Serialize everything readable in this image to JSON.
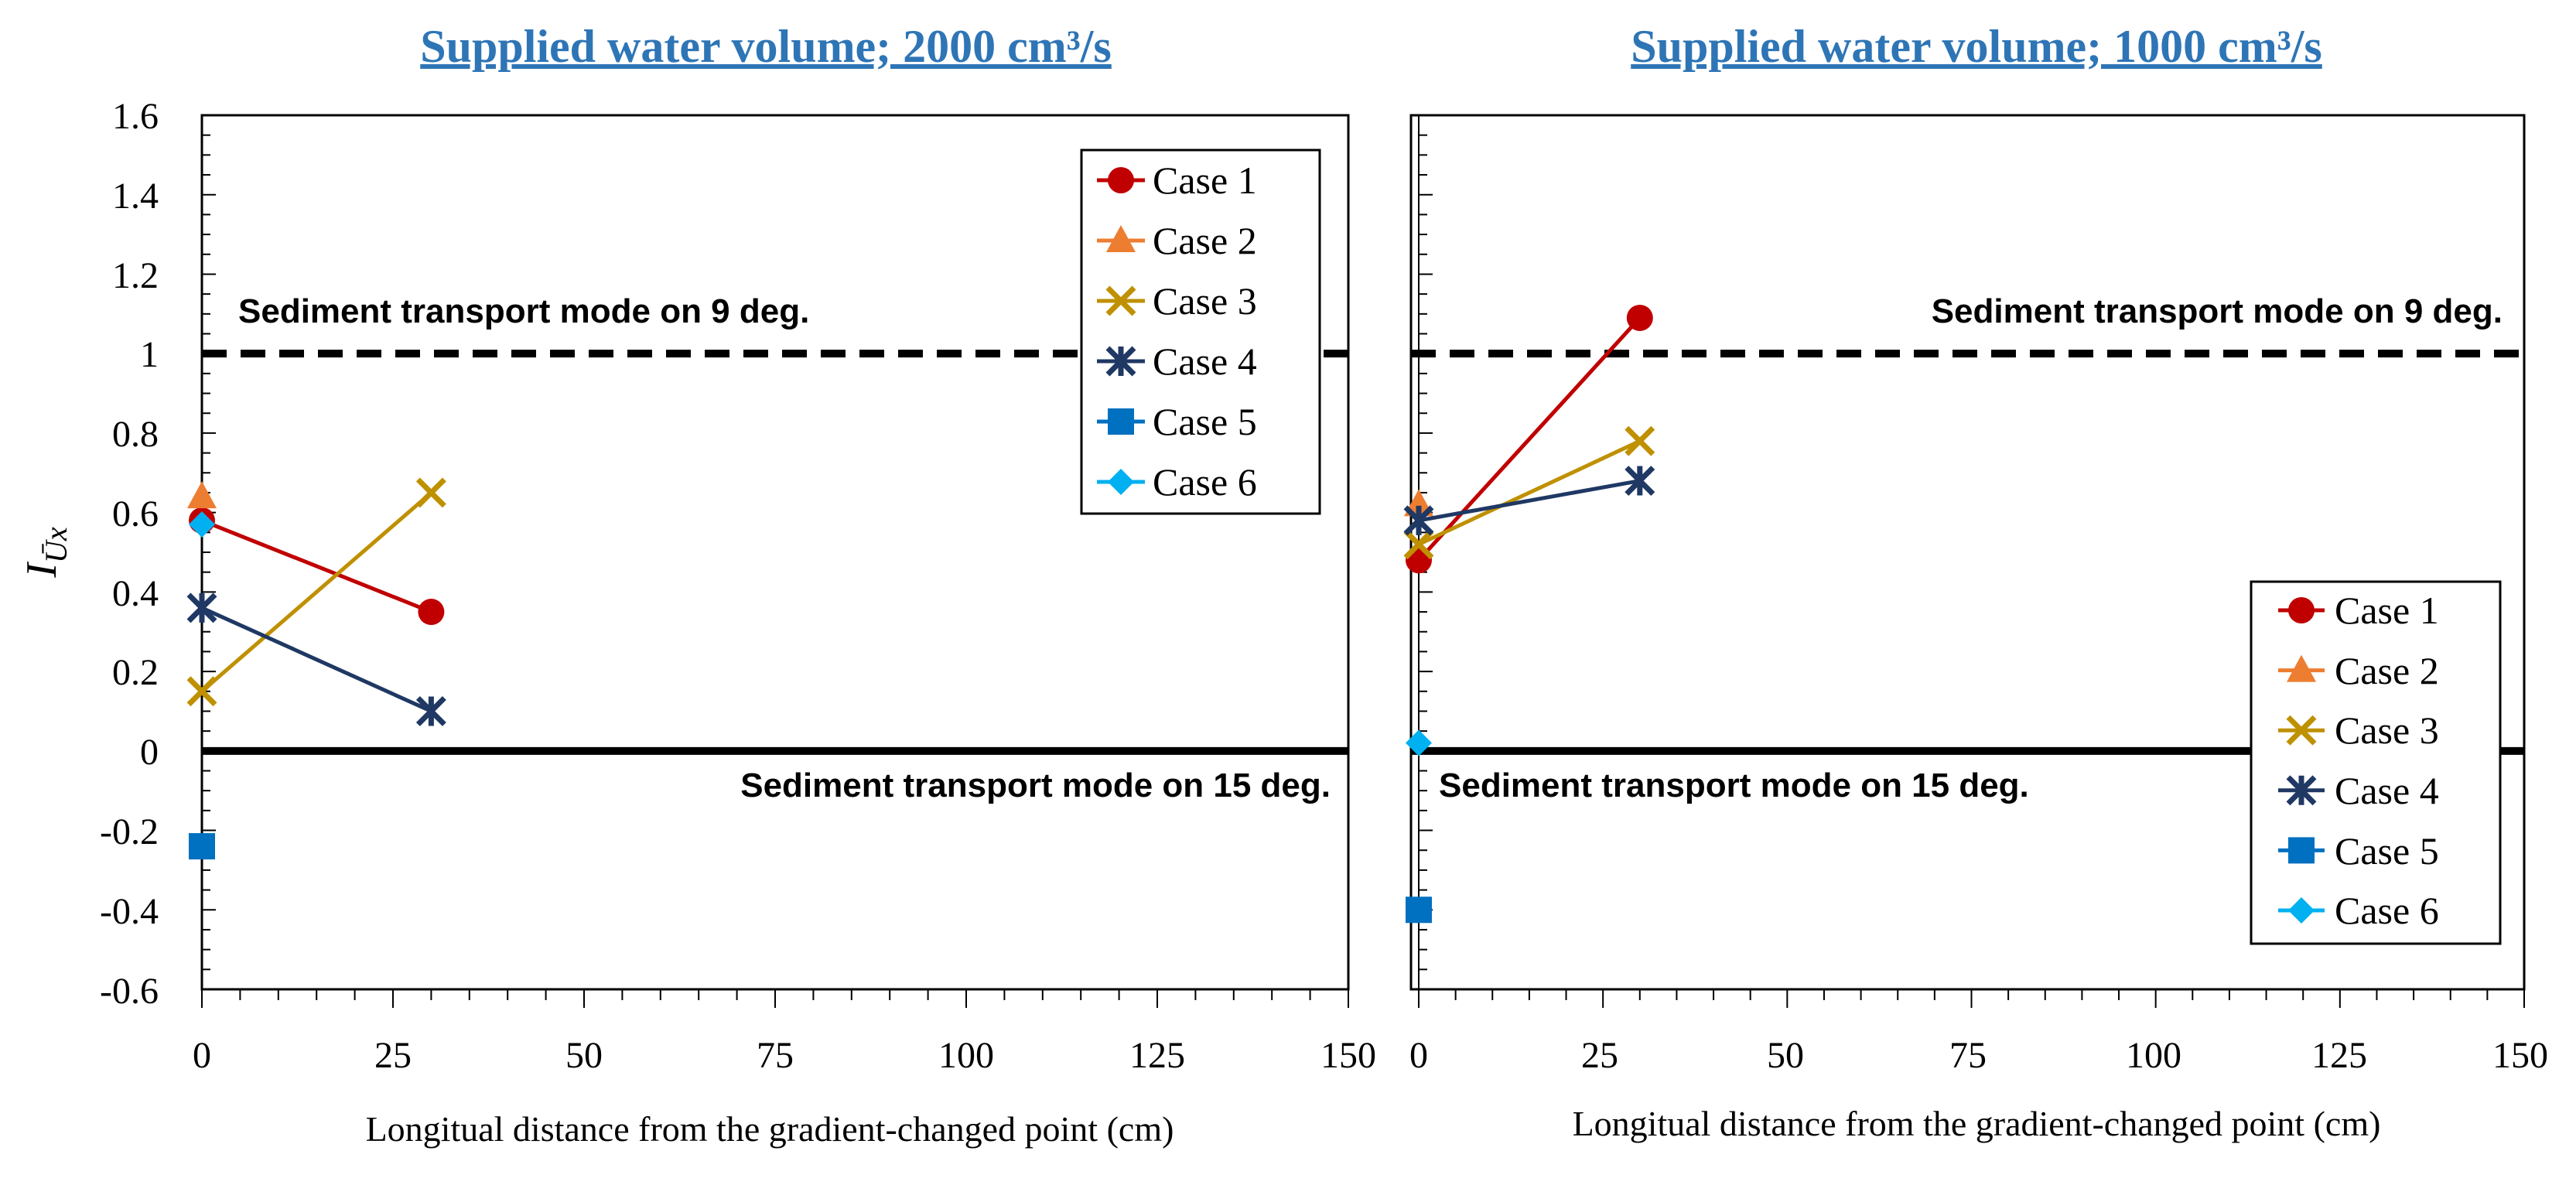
{
  "colors": {
    "case1": "#C00000",
    "case2": "#ED7D31",
    "case3": "#BF9000",
    "case4": "#1F3864",
    "case5": "#0070C0",
    "case6": "#00B0F0",
    "title": "#2E75B6",
    "line": "#000000"
  },
  "chart_data": [
    {
      "type": "line",
      "title": "Supplied water volume; 2000 cm³/s",
      "xlabel": "Longitual distance from the gradient-changed point (cm)",
      "ylabel": "I_Ūx",
      "xlim": [
        0,
        150
      ],
      "ylim": [
        -0.6,
        1.6
      ],
      "x_ticks": [
        "0",
        "25",
        "50",
        "75",
        "100",
        "125",
        "150"
      ],
      "y_ticks": [
        "-0.6",
        "-0.4",
        "-0.2",
        "0",
        "0.2",
        "0.4",
        "0.6",
        "0.8",
        "1",
        "1.2",
        "1.4",
        "1.6"
      ],
      "legend_position": "top-right",
      "reference_lines": [
        {
          "y": 1,
          "style": "dashed",
          "label": "Sediment transport mode on 9 deg."
        },
        {
          "y": 0,
          "style": "solid",
          "label": "Sediment transport mode on 15 deg."
        }
      ],
      "series": [
        {
          "name": "Case 1",
          "marker": "circle",
          "x": [
            0,
            30
          ],
          "y": [
            0.58,
            0.35
          ]
        },
        {
          "name": "Case 2",
          "marker": "triangle",
          "x": [
            0
          ],
          "y": [
            0.64
          ]
        },
        {
          "name": "Case 3",
          "marker": "x",
          "x": [
            0,
            30
          ],
          "y": [
            0.15,
            0.65
          ]
        },
        {
          "name": "Case 4",
          "marker": "star",
          "x": [
            0,
            30
          ],
          "y": [
            0.36,
            0.1
          ]
        },
        {
          "name": "Case 5",
          "marker": "square",
          "x": [
            0
          ],
          "y": [
            -0.24
          ]
        },
        {
          "name": "Case 6",
          "marker": "diamond",
          "x": [
            0
          ],
          "y": [
            0.57
          ]
        }
      ]
    },
    {
      "type": "line",
      "title": "Supplied water volume; 1000 cm³/s",
      "xlabel": "Longitual distance from the gradient-changed point (cm)",
      "ylabel": "",
      "xlim": [
        0,
        150
      ],
      "ylim": [
        -0.6,
        1.6
      ],
      "x_ticks": [
        "0",
        "25",
        "50",
        "75",
        "100",
        "125",
        "150"
      ],
      "y_ticks": [],
      "legend_position": "bottom-right",
      "reference_lines": [
        {
          "y": 1,
          "style": "dashed",
          "label": "Sediment transport mode on 9 deg."
        },
        {
          "y": 0,
          "style": "solid",
          "label": "Sediment transport mode on 15 deg."
        }
      ],
      "series": [
        {
          "name": "Case 1",
          "marker": "circle",
          "x": [
            0,
            30
          ],
          "y": [
            0.48,
            1.09
          ]
        },
        {
          "name": "Case 2",
          "marker": "triangle",
          "x": [
            0
          ],
          "y": [
            0.62
          ]
        },
        {
          "name": "Case 3",
          "marker": "x",
          "x": [
            0,
            30
          ],
          "y": [
            0.52,
            0.78
          ]
        },
        {
          "name": "Case 4",
          "marker": "star",
          "x": [
            0,
            30
          ],
          "y": [
            0.58,
            0.68
          ]
        },
        {
          "name": "Case 5",
          "marker": "square",
          "x": [
            0
          ],
          "y": [
            -0.4
          ]
        },
        {
          "name": "Case 6",
          "marker": "diamond",
          "x": [
            0
          ],
          "y": [
            0.02
          ]
        }
      ]
    }
  ]
}
